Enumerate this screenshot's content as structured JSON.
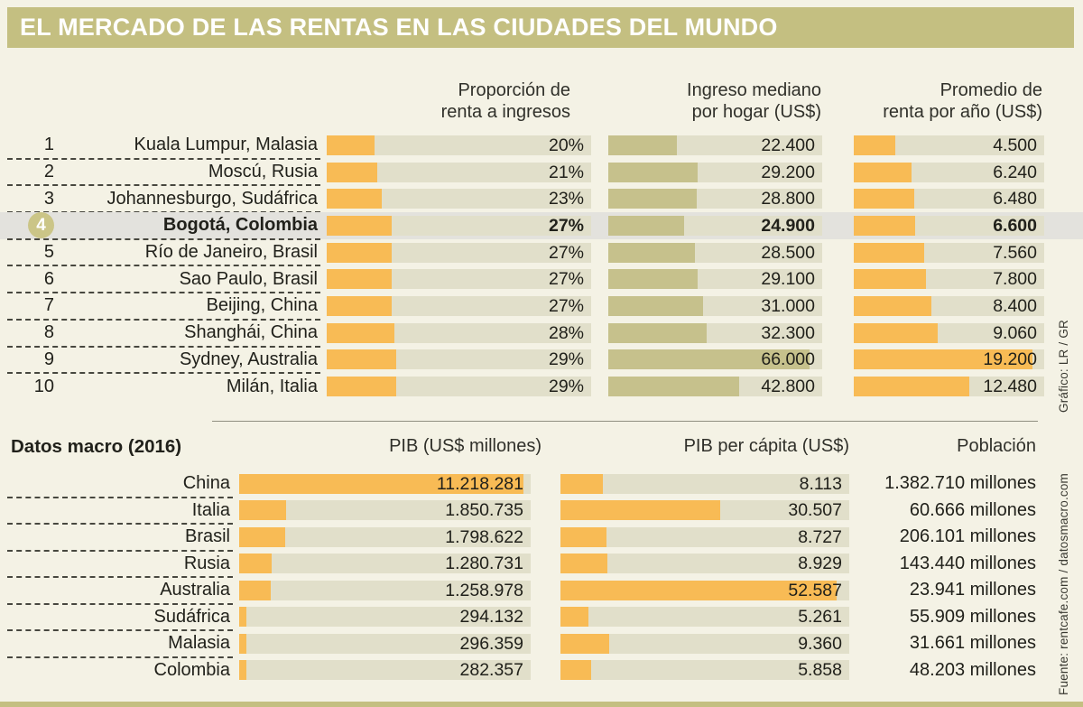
{
  "title": "EL MERCADO DE LAS RENTAS EN LAS CIUDADES DEL MUNDO",
  "credits": {
    "grafico": "Gráfico: LR / GR",
    "fuente": "Fuente: rentcafe.com / datosmacro.com"
  },
  "colors": {
    "accent_orange": "#F8BB55",
    "accent_olive": "#C6C18C",
    "bar_track": "#E1DFCA",
    "title_band": "#C4BF81",
    "background": "#F4F2E5",
    "highlight_row": "#E3E2DD",
    "rank_badge": "#CBC587"
  },
  "cities_table": {
    "headers": {
      "ratio": [
        "Proporción de",
        "renta a ingresos"
      ],
      "income": [
        "Ingreso mediano",
        "por hogar (US$)"
      ],
      "rent": [
        "Promedio de",
        "renta por año (US$)"
      ]
    },
    "rows": [
      {
        "rank": "1",
        "city": "Kuala Lumpur, Malasia",
        "ratio_pct": 20,
        "ratio_label": "20%",
        "income": 22400,
        "income_label": "22.400",
        "rent": 4500,
        "rent_label": "4.500",
        "highlight": false
      },
      {
        "rank": "2",
        "city": "Moscú, Rusia",
        "ratio_pct": 21,
        "ratio_label": "21%",
        "income": 29200,
        "income_label": "29.200",
        "rent": 6240,
        "rent_label": "6.240",
        "highlight": false
      },
      {
        "rank": "3",
        "city": "Johannesburgo, Sudáfrica",
        "ratio_pct": 23,
        "ratio_label": "23%",
        "income": 28800,
        "income_label": "28.800",
        "rent": 6480,
        "rent_label": "6.480",
        "highlight": false
      },
      {
        "rank": "4",
        "city": "Bogotá, Colombia",
        "ratio_pct": 27,
        "ratio_label": "27%",
        "income": 24900,
        "income_label": "24.900",
        "rent": 6600,
        "rent_label": "6.600",
        "highlight": true
      },
      {
        "rank": "5",
        "city": "Río de Janeiro, Brasil",
        "ratio_pct": 27,
        "ratio_label": "27%",
        "income": 28500,
        "income_label": "28.500",
        "rent": 7560,
        "rent_label": "7.560",
        "highlight": false
      },
      {
        "rank": "6",
        "city": "Sao Paulo, Brasil",
        "ratio_pct": 27,
        "ratio_label": "27%",
        "income": 29100,
        "income_label": "29.100",
        "rent": 7800,
        "rent_label": "7.800",
        "highlight": false
      },
      {
        "rank": "7",
        "city": "Beijing, China",
        "ratio_pct": 27,
        "ratio_label": "27%",
        "income": 31000,
        "income_label": "31.000",
        "rent": 8400,
        "rent_label": "8.400",
        "highlight": false
      },
      {
        "rank": "8",
        "city": "Shanghái, China",
        "ratio_pct": 28,
        "ratio_label": "28%",
        "income": 32300,
        "income_label": "32.300",
        "rent": 9060,
        "rent_label": "9.060",
        "highlight": false
      },
      {
        "rank": "9",
        "city": "Sydney, Australia",
        "ratio_pct": 29,
        "ratio_label": "29%",
        "income": 66000,
        "income_label": "66.000",
        "rent": 19200,
        "rent_label": "19.200",
        "highlight": false
      },
      {
        "rank": "10",
        "city": "Milán, Italia",
        "ratio_pct": 29,
        "ratio_label": "29%",
        "income": 42800,
        "income_label": "42.800",
        "rent": 12480,
        "rent_label": "12.480",
        "highlight": false
      }
    ]
  },
  "macro_table": {
    "section_title": "Datos macro (2016)",
    "headers": {
      "pib": "PIB (US$ millones)",
      "pib_pc": "PIB per cápita (US$)",
      "population": "Población"
    },
    "rows": [
      {
        "country": "China",
        "pib": 11218281,
        "pib_label": "11.218.281",
        "pib_pc": 8113,
        "pib_pc_label": "8.113",
        "population_label": "1.382.710 millones"
      },
      {
        "country": "Italia",
        "pib": 1850735,
        "pib_label": "1.850.735",
        "pib_pc": 30507,
        "pib_pc_label": "30.507",
        "population_label": "60.666 millones"
      },
      {
        "country": "Brasil",
        "pib": 1798622,
        "pib_label": "1.798.622",
        "pib_pc": 8727,
        "pib_pc_label": "8.727",
        "population_label": "206.101 millones"
      },
      {
        "country": "Rusia",
        "pib": 1280731,
        "pib_label": "1.280.731",
        "pib_pc": 8929,
        "pib_pc_label": "8.929",
        "population_label": "143.440 millones"
      },
      {
        "country": "Australia",
        "pib": 1258978,
        "pib_label": "1.258.978",
        "pib_pc": 52587,
        "pib_pc_label": "52.587",
        "population_label": "23.941 millones"
      },
      {
        "country": "Sudáfrica",
        "pib": 294132,
        "pib_label": "294.132",
        "pib_pc": 5261,
        "pib_pc_label": "5.261",
        "population_label": "55.909 millones"
      },
      {
        "country": "Malasia",
        "pib": 296359,
        "pib_label": "296.359",
        "pib_pc": 9360,
        "pib_pc_label": "9.360",
        "population_label": "31.661 millones"
      },
      {
        "country": "Colombia",
        "pib": 282357,
        "pib_label": "282.357",
        "pib_pc": 5858,
        "pib_pc_label": "5.858",
        "population_label": "48.203 millones"
      }
    ]
  },
  "chart_data": [
    {
      "type": "bar",
      "title": "EL MERCADO DE LAS RENTAS EN LAS CIUDADES DEL MUNDO",
      "categories": [
        "Kuala Lumpur, Malasia",
        "Moscú, Rusia",
        "Johannesburgo, Sudáfrica",
        "Bogotá, Colombia",
        "Río de Janeiro, Brasil",
        "Sao Paulo, Brasil",
        "Beijing, China",
        "Shanghái, China",
        "Sydney, Australia",
        "Milán, Italia"
      ],
      "ranks": [
        1,
        2,
        3,
        4,
        5,
        6,
        7,
        8,
        9,
        10
      ],
      "highlighted_category": "Bogotá, Colombia",
      "orientation": "horizontal",
      "grid": false,
      "series": [
        {
          "name": "Proporción de renta a ingresos (%)",
          "values": [
            20,
            21,
            23,
            27,
            27,
            27,
            27,
            28,
            29,
            29
          ],
          "axis_max": 110,
          "color": "#F8BB55"
        },
        {
          "name": "Ingreso mediano por hogar (US$)",
          "values": [
            22400,
            29200,
            28800,
            24900,
            28500,
            29100,
            31000,
            32300,
            66000,
            42800
          ],
          "axis_max": 70000,
          "color": "#C6C18C"
        },
        {
          "name": "Promedio de renta por año (US$)",
          "values": [
            4500,
            6240,
            6480,
            6600,
            7560,
            7800,
            8400,
            9060,
            19200,
            12480
          ],
          "axis_max": 20500,
          "color": "#F8BB55"
        }
      ]
    },
    {
      "type": "bar",
      "title": "Datos macro (2016)",
      "categories": [
        "China",
        "Italia",
        "Brasil",
        "Rusia",
        "Australia",
        "Sudáfrica",
        "Malasia",
        "Colombia"
      ],
      "orientation": "horizontal",
      "grid": false,
      "series": [
        {
          "name": "PIB (US$ millones)",
          "values": [
            11218281,
            1850735,
            1798622,
            1280731,
            1258978,
            294132,
            296359,
            282357
          ],
          "axis_max": 11500000,
          "color": "#F8BB55"
        },
        {
          "name": "PIB per cápita (US$)",
          "values": [
            8113,
            30507,
            8727,
            8929,
            52587,
            5261,
            9360,
            5858
          ],
          "axis_max": 55000,
          "color": "#F8BB55"
        },
        {
          "name": "Población (millones)",
          "values": [
            "1.382.710",
            "60.666",
            "206.101",
            "143.440",
            "23.941",
            "55.909",
            "31.661",
            "48.203"
          ]
        }
      ]
    }
  ]
}
